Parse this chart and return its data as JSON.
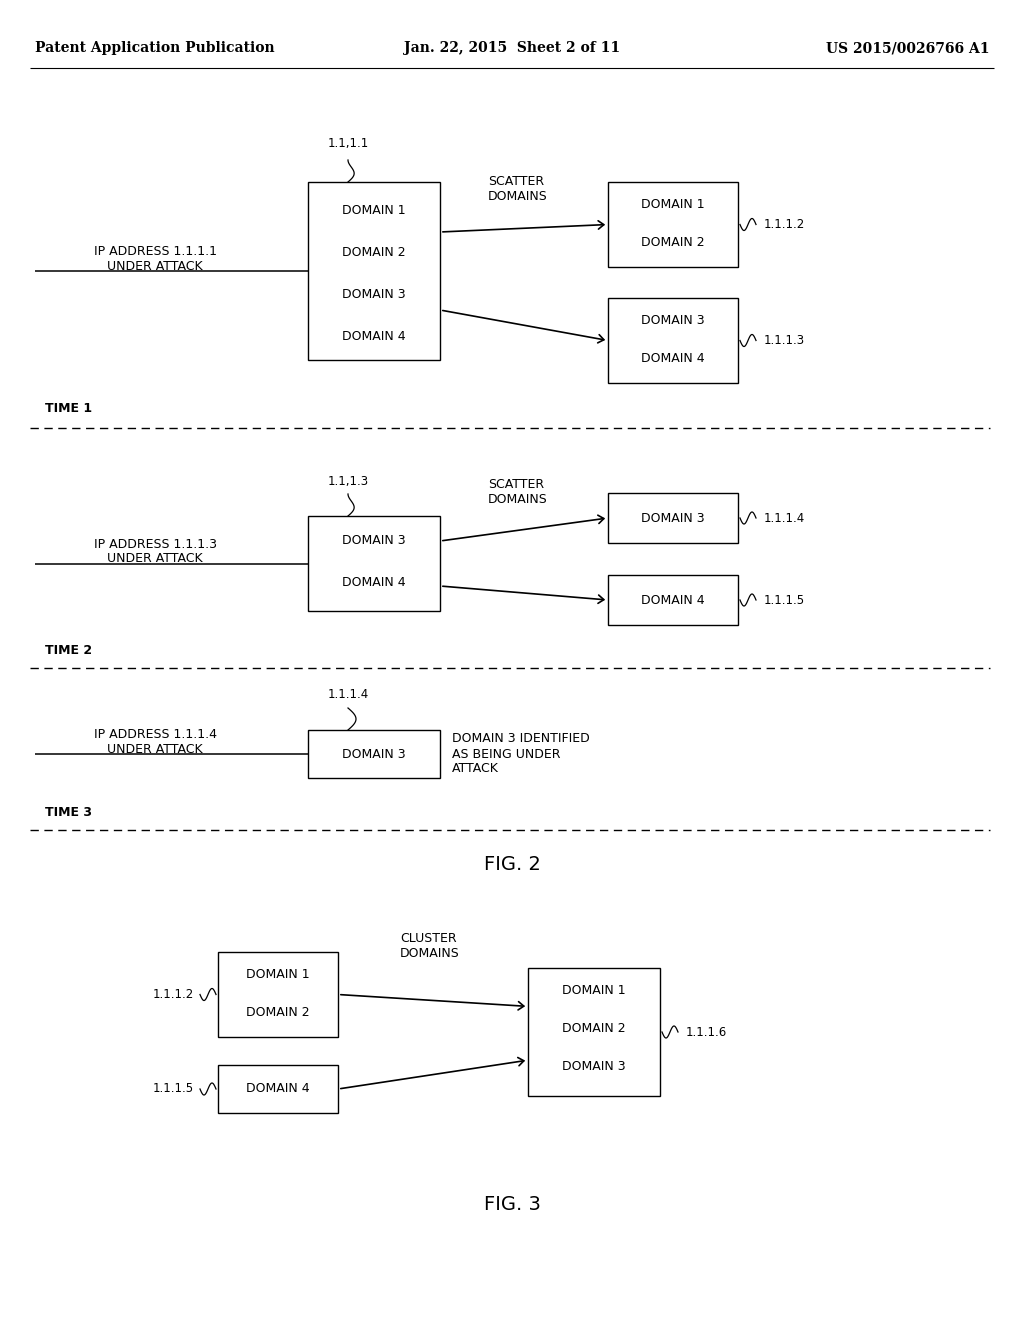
{
  "bg_color": "#ffffff",
  "header_left": "Patent Application Publication",
  "header_mid": "Jan. 22, 2015  Sheet 2 of 11",
  "header_right": "US 2015/0026766 A1",
  "fig2_label": "FIG. 2",
  "fig3_label": "FIG. 3",
  "time1_label": "TIME 1",
  "time2_label": "TIME 2",
  "time3_label": "TIME 3",
  "section1": {
    "ip_label": "IP ADDRESS 1.1.1.1\nUNDER ATTACK",
    "ip_above": "1.1,1.1",
    "center_box_lines": [
      "DOMAIN 1",
      "DOMAIN 2",
      "DOMAIN 3",
      "DOMAIN 4"
    ],
    "scatter_label": "SCATTER\nDOMAINS",
    "right_box1_lines": [
      "DOMAIN 1",
      "DOMAIN 2"
    ],
    "right_box1_ip": "1.1.1.2",
    "right_box2_lines": [
      "DOMAIN 3",
      "DOMAIN 4"
    ],
    "right_box2_ip": "1.1.1.3"
  },
  "section2": {
    "ip_label": "IP ADDRESS 1.1.1.3\nUNDER ATTACK",
    "ip_above": "1.1,1.3",
    "center_box_lines": [
      "DOMAIN 3",
      "DOMAIN 4"
    ],
    "scatter_label": "SCATTER\nDOMAINS",
    "right_box1_lines": [
      "DOMAIN 3"
    ],
    "right_box1_ip": "1.1.1.4",
    "right_box2_lines": [
      "DOMAIN 4"
    ],
    "right_box2_ip": "1.1.1.5"
  },
  "section3": {
    "ip_label": "IP ADDRESS 1.1.1.4\nUNDER ATTACK",
    "ip_above": "1.1.1.4",
    "center_box_lines": [
      "DOMAIN 3"
    ],
    "note_label": "DOMAIN 3 IDENTIFIED\nAS BEING UNDER\nATTACK"
  },
  "section4": {
    "left_box1_ip": "1.1.1.2",
    "left_box1_lines": [
      "DOMAIN 1",
      "DOMAIN 2"
    ],
    "left_box2_ip": "1.1.1.5",
    "left_box2_lines": [
      "DOMAIN 4"
    ],
    "cluster_label": "CLUSTER\nDOMAINS",
    "right_box_lines": [
      "DOMAIN 1",
      "DOMAIN 2",
      "DOMAIN 3"
    ],
    "right_box_ip": "1.1.1.6"
  }
}
